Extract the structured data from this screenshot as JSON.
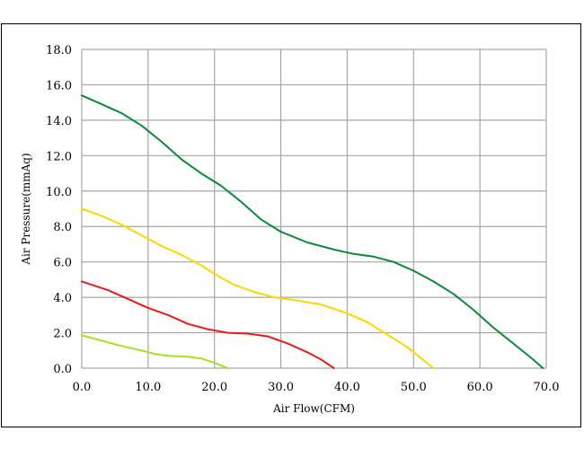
{
  "chart_data": {
    "type": "line",
    "xlabel": "Air Flow(CFM)",
    "ylabel": "Air Pressure(mmAq)",
    "xlim": [
      0,
      70
    ],
    "ylim": [
      0,
      18
    ],
    "x_ticks": [
      "0.0",
      "10.0",
      "20.0",
      "30.0",
      "40.0",
      "50.0",
      "60.0",
      "70.0"
    ],
    "y_ticks": [
      "0.0",
      "2.0",
      "4.0",
      "6.0",
      "8.0",
      "10.0",
      "12.0",
      "14.0",
      "16.0",
      "18.0"
    ],
    "grid": true,
    "series": [
      {
        "color": "#0a8a3c",
        "points": [
          [
            0,
            15.4
          ],
          [
            3,
            14.9
          ],
          [
            6,
            14.4
          ],
          [
            9,
            13.7
          ],
          [
            12,
            12.8
          ],
          [
            15,
            11.8
          ],
          [
            18,
            11.0
          ],
          [
            21,
            10.3
          ],
          [
            24,
            9.4
          ],
          [
            27,
            8.4
          ],
          [
            30,
            7.7
          ],
          [
            34,
            7.1
          ],
          [
            38,
            6.7
          ],
          [
            41,
            6.45
          ],
          [
            44,
            6.3
          ],
          [
            47,
            6.0
          ],
          [
            50,
            5.5
          ],
          [
            53,
            4.9
          ],
          [
            56,
            4.2
          ],
          [
            59,
            3.3
          ],
          [
            62,
            2.3
          ],
          [
            65,
            1.4
          ],
          [
            68,
            0.5
          ],
          [
            69.5,
            0.0
          ]
        ]
      },
      {
        "color": "#ffd700",
        "points": [
          [
            0,
            9.0
          ],
          [
            3,
            8.6
          ],
          [
            6,
            8.1
          ],
          [
            9,
            7.5
          ],
          [
            12,
            6.9
          ],
          [
            15,
            6.4
          ],
          [
            18,
            5.8
          ],
          [
            21,
            5.1
          ],
          [
            23,
            4.7
          ],
          [
            26,
            4.3
          ],
          [
            29,
            4.0
          ],
          [
            32,
            3.85
          ],
          [
            36,
            3.6
          ],
          [
            40,
            3.1
          ],
          [
            43,
            2.6
          ],
          [
            46,
            1.9
          ],
          [
            49,
            1.2
          ],
          [
            51,
            0.6
          ],
          [
            53,
            0.0
          ]
        ]
      },
      {
        "color": "#e81c1c",
        "points": [
          [
            0,
            4.9
          ],
          [
            4,
            4.4
          ],
          [
            7,
            3.9
          ],
          [
            10,
            3.4
          ],
          [
            13,
            3.0
          ],
          [
            16,
            2.5
          ],
          [
            19,
            2.2
          ],
          [
            22,
            2.0
          ],
          [
            25,
            1.95
          ],
          [
            28,
            1.8
          ],
          [
            31,
            1.4
          ],
          [
            34,
            0.9
          ],
          [
            36,
            0.5
          ],
          [
            38,
            0.0
          ]
        ]
      },
      {
        "color": "#a6e022",
        "points": [
          [
            0,
            1.85
          ],
          [
            3,
            1.55
          ],
          [
            6,
            1.25
          ],
          [
            9,
            1.0
          ],
          [
            11,
            0.8
          ],
          [
            13,
            0.7
          ],
          [
            16,
            0.65
          ],
          [
            18,
            0.55
          ],
          [
            20,
            0.3
          ],
          [
            22,
            0.0
          ]
        ]
      }
    ]
  }
}
